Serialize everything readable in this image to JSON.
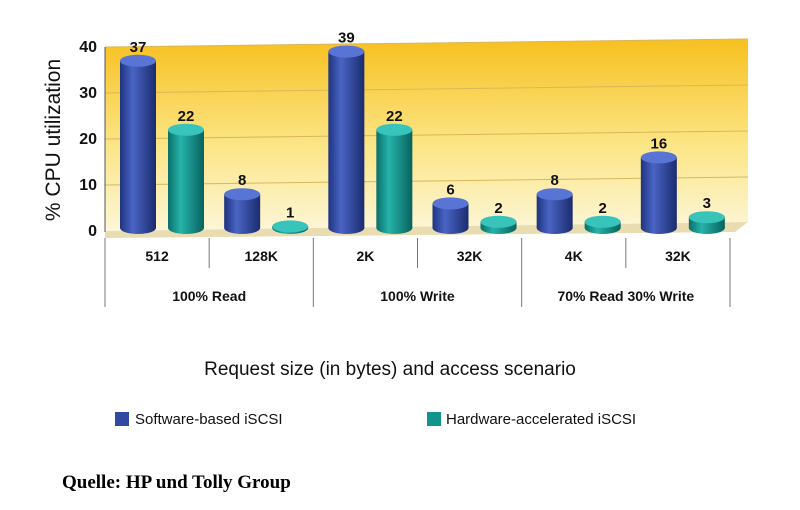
{
  "chart_data": {
    "type": "bar",
    "ylabel": "% CPU utilization",
    "xlabel": "Request size (in bytes) and access scenario",
    "ylim": [
      0,
      40
    ],
    "yticks": [
      0,
      10,
      20,
      30,
      40
    ],
    "categories": [
      "512",
      "128K",
      "2K",
      "32K",
      "4K",
      "32K"
    ],
    "groups": [
      "100% Read",
      "100% Write",
      "70% Read 30% Write"
    ],
    "series": [
      {
        "name": "Software-based iSCSI",
        "color": "#2f4aa0",
        "values": [
          37,
          8,
          39,
          6,
          8,
          16
        ]
      },
      {
        "name": "Hardware-accelerated iSCSI",
        "color": "#0f948e",
        "values": [
          22,
          1,
          22,
          2,
          2,
          3
        ]
      }
    ],
    "legend": "bottom",
    "grid": true
  },
  "source": "Quelle: HP und Tolly Group"
}
